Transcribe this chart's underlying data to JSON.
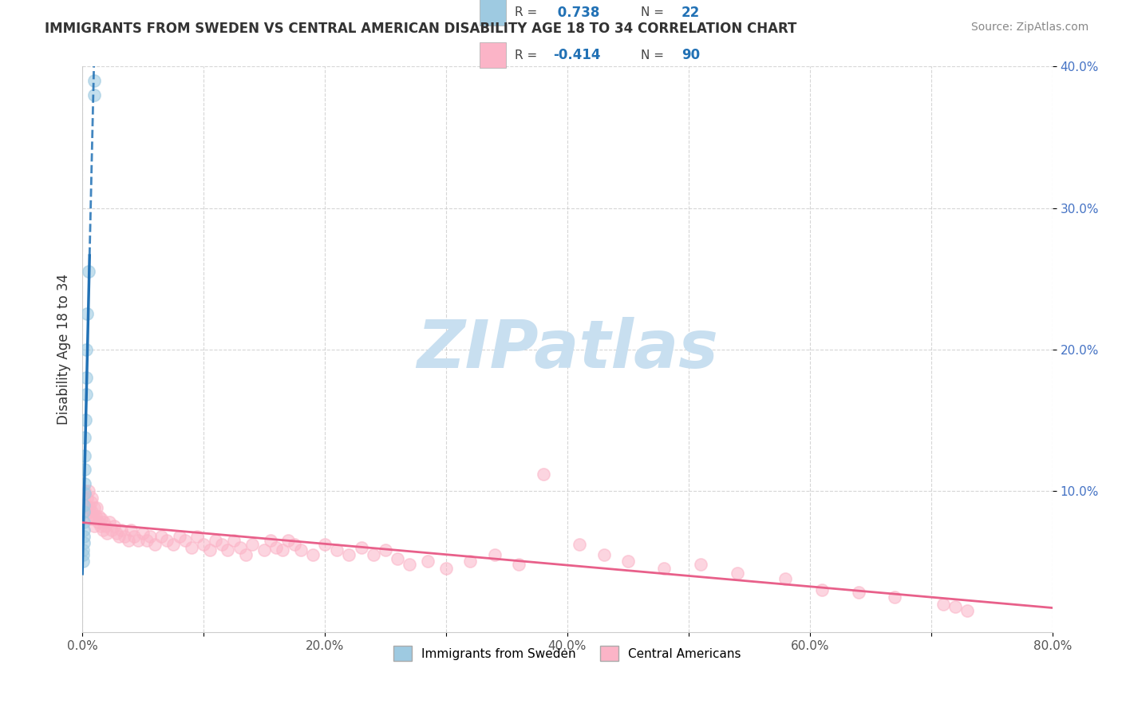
{
  "title": "IMMIGRANTS FROM SWEDEN VS CENTRAL AMERICAN DISABILITY AGE 18 TO 34 CORRELATION CHART",
  "source": "Source: ZipAtlas.com",
  "ylabel": "Disability Age 18 to 34",
  "xlim": [
    0.0,
    0.8
  ],
  "ylim": [
    0.0,
    0.4
  ],
  "xtick_labels": [
    "0.0%",
    "",
    "20.0%",
    "",
    "40.0%",
    "",
    "60.0%",
    "",
    "80.0%"
  ],
  "xtick_values": [
    0.0,
    0.1,
    0.2,
    0.3,
    0.4,
    0.5,
    0.6,
    0.7,
    0.8
  ],
  "ytick_labels": [
    "10.0%",
    "20.0%",
    "30.0%",
    "40.0%"
  ],
  "ytick_values": [
    0.1,
    0.2,
    0.3,
    0.4
  ],
  "sweden_R": 0.738,
  "sweden_N": 22,
  "central_R": -0.414,
  "central_N": 90,
  "sweden_color": "#9ecae1",
  "sweden_edge_color": "#9ecae1",
  "sweden_line_color": "#2171b5",
  "central_color": "#fbb4c7",
  "central_edge_color": "#fbb4c7",
  "central_line_color": "#e8608a",
  "watermark": "ZIPatlas",
  "watermark_color": "#c8dff0",
  "background_color": "#ffffff",
  "grid_color": "#cccccc",
  "legend_R_color": "#2171b5",
  "ytick_color": "#4472c4",
  "xtick_color": "#555555",
  "legend_label1": "Immigrants from Sweden",
  "legend_label2": "Central Americans",
  "sweden_x": [
    0.0005,
    0.0007,
    0.0008,
    0.001,
    0.001,
    0.0012,
    0.0013,
    0.0015,
    0.0015,
    0.0017,
    0.0018,
    0.002,
    0.002,
    0.0022,
    0.0025,
    0.003,
    0.003,
    0.0035,
    0.004,
    0.005,
    0.0095,
    0.01
  ],
  "sweden_y": [
    0.05,
    0.055,
    0.058,
    0.063,
    0.068,
    0.072,
    0.078,
    0.085,
    0.09,
    0.098,
    0.105,
    0.115,
    0.125,
    0.138,
    0.15,
    0.168,
    0.18,
    0.2,
    0.225,
    0.255,
    0.38,
    0.39
  ],
  "central_x": [
    0.001,
    0.002,
    0.003,
    0.004,
    0.005,
    0.005,
    0.006,
    0.007,
    0.007,
    0.008,
    0.008,
    0.009,
    0.01,
    0.01,
    0.011,
    0.012,
    0.013,
    0.014,
    0.015,
    0.016,
    0.017,
    0.018,
    0.019,
    0.02,
    0.022,
    0.024,
    0.026,
    0.028,
    0.03,
    0.032,
    0.035,
    0.038,
    0.04,
    0.043,
    0.046,
    0.05,
    0.053,
    0.056,
    0.06,
    0.065,
    0.07,
    0.075,
    0.08,
    0.085,
    0.09,
    0.095,
    0.1,
    0.105,
    0.11,
    0.115,
    0.12,
    0.125,
    0.13,
    0.135,
    0.14,
    0.15,
    0.155,
    0.16,
    0.165,
    0.17,
    0.175,
    0.18,
    0.19,
    0.2,
    0.21,
    0.22,
    0.23,
    0.24,
    0.25,
    0.26,
    0.27,
    0.285,
    0.3,
    0.32,
    0.34,
    0.36,
    0.38,
    0.41,
    0.43,
    0.45,
    0.48,
    0.51,
    0.54,
    0.58,
    0.61,
    0.64,
    0.67,
    0.71,
    0.72,
    0.73
  ],
  "central_y": [
    0.095,
    0.1,
    0.09,
    0.095,
    0.085,
    0.1,
    0.088,
    0.092,
    0.08,
    0.085,
    0.095,
    0.082,
    0.088,
    0.075,
    0.082,
    0.088,
    0.078,
    0.082,
    0.075,
    0.08,
    0.072,
    0.078,
    0.075,
    0.07,
    0.078,
    0.072,
    0.075,
    0.07,
    0.068,
    0.072,
    0.068,
    0.065,
    0.072,
    0.068,
    0.065,
    0.07,
    0.065,
    0.068,
    0.062,
    0.068,
    0.065,
    0.062,
    0.068,
    0.065,
    0.06,
    0.068,
    0.062,
    0.058,
    0.065,
    0.062,
    0.058,
    0.065,
    0.06,
    0.055,
    0.062,
    0.058,
    0.065,
    0.06,
    0.058,
    0.065,
    0.062,
    0.058,
    0.055,
    0.062,
    0.058,
    0.055,
    0.06,
    0.055,
    0.058,
    0.052,
    0.048,
    0.05,
    0.045,
    0.05,
    0.055,
    0.048,
    0.112,
    0.062,
    0.055,
    0.05,
    0.045,
    0.048,
    0.042,
    0.038,
    0.03,
    0.028,
    0.025,
    0.02,
    0.018,
    0.015
  ]
}
